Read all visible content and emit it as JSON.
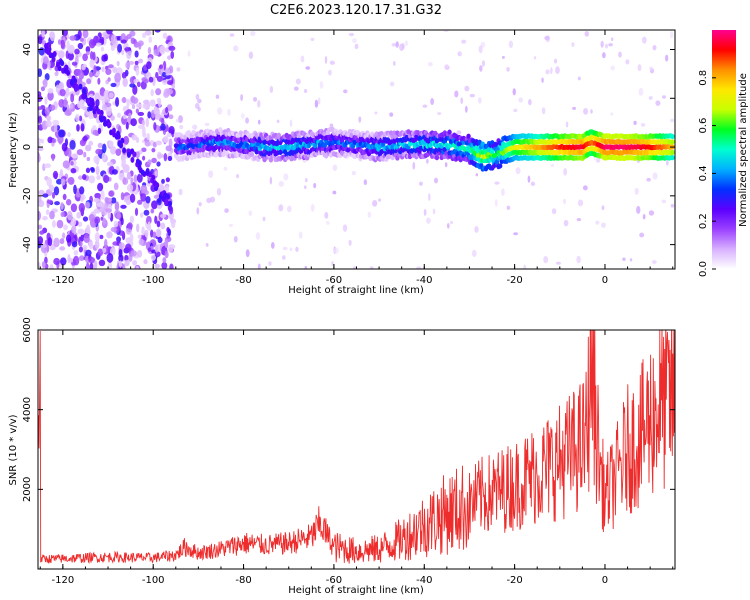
{
  "figure_title": "C2E6.2023.120.17.31.G32",
  "chart_data": [
    {
      "type": "heatmap",
      "title": "",
      "xlabel": "Height of straight line (km)",
      "ylabel": "Frequency (Hz)",
      "xlim": [
        -125.5,
        15.5
      ],
      "ylim": [
        -50,
        48
      ],
      "xticks": [
        -120,
        -100,
        -80,
        -60,
        -40,
        -20,
        0
      ],
      "yticks": [
        -40,
        -20,
        0,
        20,
        40
      ],
      "colorbar": {
        "label": "Normalized spectral amplitude",
        "range": [
          0.0,
          1.0
        ],
        "ticks": [
          0.0,
          0.2,
          0.4,
          0.6,
          0.8
        ],
        "colors": [
          "#ffffff",
          "#d8b0ff",
          "#9a40ff",
          "#5a00ff",
          "#0030ff",
          "#00b0ff",
          "#00ffd0",
          "#00ff20",
          "#c8ff00",
          "#ffe800",
          "#ff9000",
          "#ff0000",
          "#ff0090"
        ]
      },
      "signal_track": [
        {
          "x": -95,
          "freq": 0,
          "amp": 0.32
        },
        {
          "x": -90,
          "freq": 1,
          "amp": 0.35
        },
        {
          "x": -85,
          "freq": 2,
          "amp": 0.38
        },
        {
          "x": -80,
          "freq": 1,
          "amp": 0.36
        },
        {
          "x": -75,
          "freq": 0,
          "amp": 0.42
        },
        {
          "x": -70,
          "freq": 0,
          "amp": 0.45
        },
        {
          "x": -65,
          "freq": 1,
          "amp": 0.4
        },
        {
          "x": -60,
          "freq": 2,
          "amp": 0.38
        },
        {
          "x": -55,
          "freq": 1,
          "amp": 0.36
        },
        {
          "x": -50,
          "freq": 0,
          "amp": 0.4
        },
        {
          "x": -45,
          "freq": 1,
          "amp": 0.42
        },
        {
          "x": -40,
          "freq": 1,
          "amp": 0.45
        },
        {
          "x": -35,
          "freq": 1,
          "amp": 0.48
        },
        {
          "x": -30,
          "freq": -1,
          "amp": 0.5
        },
        {
          "x": -27,
          "freq": -4,
          "amp": 0.7
        },
        {
          "x": -24,
          "freq": -3,
          "amp": 0.55
        },
        {
          "x": -20,
          "freq": 0,
          "amp": 0.72
        },
        {
          "x": -15,
          "freq": 0,
          "amp": 0.8
        },
        {
          "x": -10,
          "freq": 0,
          "amp": 0.9
        },
        {
          "x": -5,
          "freq": 0,
          "amp": 0.95
        },
        {
          "x": -3,
          "freq": 2,
          "amp": 0.85
        },
        {
          "x": 0,
          "freq": 0,
          "amp": 0.97
        },
        {
          "x": 5,
          "freq": 0,
          "amp": 0.97
        },
        {
          "x": 10,
          "freq": 0,
          "amp": 0.92
        },
        {
          "x": 15,
          "freq": 0,
          "amp": 0.8
        }
      ]
    },
    {
      "type": "line",
      "title": "",
      "xlabel": "Height of straight line (km)",
      "ylabel": "SNR (10 * v/v)",
      "xlim": [
        -125.5,
        15.5
      ],
      "ylim": [
        0,
        6000
      ],
      "xticks": [
        -120,
        -100,
        -80,
        -60,
        -40,
        -20,
        0
      ],
      "yticks": [
        2000,
        4000,
        6000
      ],
      "color": "#ee2c2c",
      "series": [
        {
          "x": [
            -125,
            -120,
            -115,
            -110,
            -105,
            -100,
            -95,
            -93,
            -90,
            -85,
            -80,
            -75,
            -70,
            -65,
            -63,
            -60,
            -55,
            -50,
            -45,
            -40,
            -35,
            -30,
            -28,
            -25,
            -20,
            -15,
            -10,
            -5,
            -4,
            -3,
            -2,
            -1,
            0,
            2,
            5,
            8,
            10,
            12,
            15
          ],
          "y": [
            250,
            260,
            280,
            300,
            290,
            280,
            350,
            550,
            400,
            500,
            650,
            600,
            650,
            800,
            1150,
            550,
            450,
            500,
            750,
            1100,
            1400,
            1600,
            1800,
            1900,
            2100,
            2400,
            2700,
            3100,
            3400,
            5400,
            3600,
            2500,
            1800,
            2200,
            3000,
            3300,
            3800,
            4100,
            4300
          ]
        }
      ]
    }
  ]
}
